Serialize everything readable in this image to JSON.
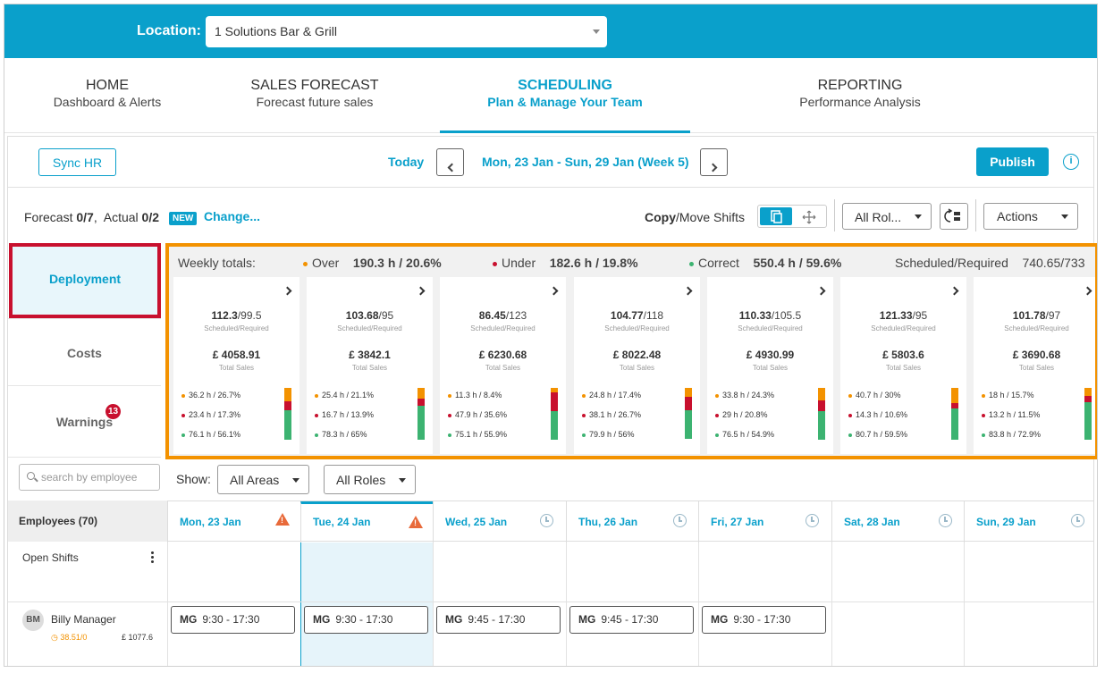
{
  "location": {
    "label": "Location:",
    "value": "1 Solutions Bar & Grill"
  },
  "nav": [
    {
      "title": "HOME",
      "subtitle": "Dashboard & Alerts"
    },
    {
      "title": "SALES FORECAST",
      "subtitle": "Forecast future sales"
    },
    {
      "title": "SCHEDULING",
      "subtitle": "Plan & Manage Your Team"
    },
    {
      "title": "REPORTING",
      "subtitle": "Performance Analysis"
    }
  ],
  "toolbar": {
    "sync_hr": "Sync HR",
    "today": "Today",
    "week_range": "Mon, 23 Jan - Sun, 29 Jan (Week 5)",
    "publish": "Publish",
    "info_icon": "i"
  },
  "forecast": {
    "label1": "Forecast",
    "val1": "0/7",
    "label2": "Actual",
    "val2": "0/2",
    "badge": "NEW",
    "change": "Change..."
  },
  "copy_move": {
    "copy": "Copy",
    "slash": "/",
    "move": "Move Shifts"
  },
  "filters": {
    "all_roles": "All Rol...",
    "actions": "Actions",
    "show": "Show:",
    "all_areas": "All Areas",
    "all_roles_2": "All Roles"
  },
  "sidebar": {
    "deployment": "Deployment",
    "costs": "Costs",
    "warnings": "Warnings",
    "warnings_count": "13"
  },
  "weekly": {
    "label": "Weekly totals:",
    "over_label": "Over",
    "over_val": "190.3 h  /  20.6%",
    "under_label": "Under",
    "under_val": "182.6 h  /  19.8%",
    "correct_label": "Correct",
    "correct_val": "550.4 h  /  59.6%",
    "sr_label": "Scheduled/Required",
    "sr_val": "740.65/733"
  },
  "colors": {
    "over": "#f39200",
    "under": "#c8102e",
    "correct": "#3cb371",
    "accent": "#0aa0cb"
  },
  "day_cards": [
    {
      "sched": "112.3",
      "req": "/99.5",
      "sales": "£ 4058.91",
      "over": "36.2 h  /  26.7%",
      "under": "23.4 h  /  17.3%",
      "correct": "76.1 h  /  56.1%",
      "bar": [
        0.267,
        0.173,
        0.561
      ]
    },
    {
      "sched": "103.68",
      "req": "/95",
      "sales": "£ 3842.1",
      "over": "25.4 h  /  21.1%",
      "under": "16.7 h  /  13.9%",
      "correct": "78.3 h  /  65%",
      "bar": [
        0.211,
        0.139,
        0.65
      ]
    },
    {
      "sched": "86.45",
      "req": "/123",
      "sales": "£ 6230.68",
      "over": "11.3 h  /  8.4%",
      "under": "47.9 h  /  35.6%",
      "correct": "75.1 h  /  55.9%",
      "bar": [
        0.084,
        0.356,
        0.559
      ]
    },
    {
      "sched": "104.77",
      "req": "/118",
      "sales": "£ 8022.48",
      "over": "24.8 h  /  17.4%",
      "under": "38.1 h  /  26.7%",
      "correct": "79.9 h  /  56%",
      "bar": [
        0.174,
        0.267,
        0.56
      ]
    },
    {
      "sched": "110.33",
      "req": "/105.5",
      "sales": "£ 4930.99",
      "over": "33.8 h  /  24.3%",
      "under": "29 h  /  20.8%",
      "correct": "76.5 h  /  54.9%",
      "bar": [
        0.243,
        0.208,
        0.549
      ]
    },
    {
      "sched": "121.33",
      "req": "/95",
      "sales": "£ 5803.6",
      "over": "40.7 h  /  30%",
      "under": "14.3 h  /  10.6%",
      "correct": "80.7 h  /  59.5%",
      "bar": [
        0.3,
        0.106,
        0.595
      ]
    },
    {
      "sched": "101.78",
      "req": "/97",
      "sales": "£ 3690.68",
      "over": "18 h  /  15.7%",
      "under": "13.2 h  /  11.5%",
      "correct": "83.8 h  /  72.9%",
      "bar": [
        0.157,
        0.115,
        0.729
      ]
    }
  ],
  "card_labels": {
    "sr": "Scheduled/Required",
    "sales": "Total Sales"
  },
  "search": {
    "placeholder": "search by employee"
  },
  "employees_header": "Employees (70)",
  "days": [
    {
      "label": "Mon, 23 Jan",
      "icon": "warning-icon"
    },
    {
      "label": "Tue, 24 Jan",
      "icon": "warning-icon"
    },
    {
      "label": "Wed, 25 Jan",
      "icon": "clock-icon"
    },
    {
      "label": "Thu, 26 Jan",
      "icon": "clock-icon"
    },
    {
      "label": "Fri, 27 Jan",
      "icon": "clock-icon"
    },
    {
      "label": "Sat, 28 Jan",
      "icon": "clock-icon"
    },
    {
      "label": "Sun, 29 Jan",
      "icon": "clock-icon"
    }
  ],
  "open_shifts": "Open Shifts",
  "employee": {
    "initials": "BM",
    "name": "Billy Manager",
    "hours": "38.51/0",
    "cost": "£ 1077.6"
  },
  "shifts": [
    {
      "code": "MG",
      "time": "9:30 - 17:30"
    },
    {
      "code": "MG",
      "time": "9:30 - 17:30"
    },
    {
      "code": "MG",
      "time": "9:45 - 17:30"
    },
    {
      "code": "MG",
      "time": "9:45 - 17:30"
    },
    {
      "code": "MG",
      "time": "9:30 - 17:30"
    }
  ]
}
